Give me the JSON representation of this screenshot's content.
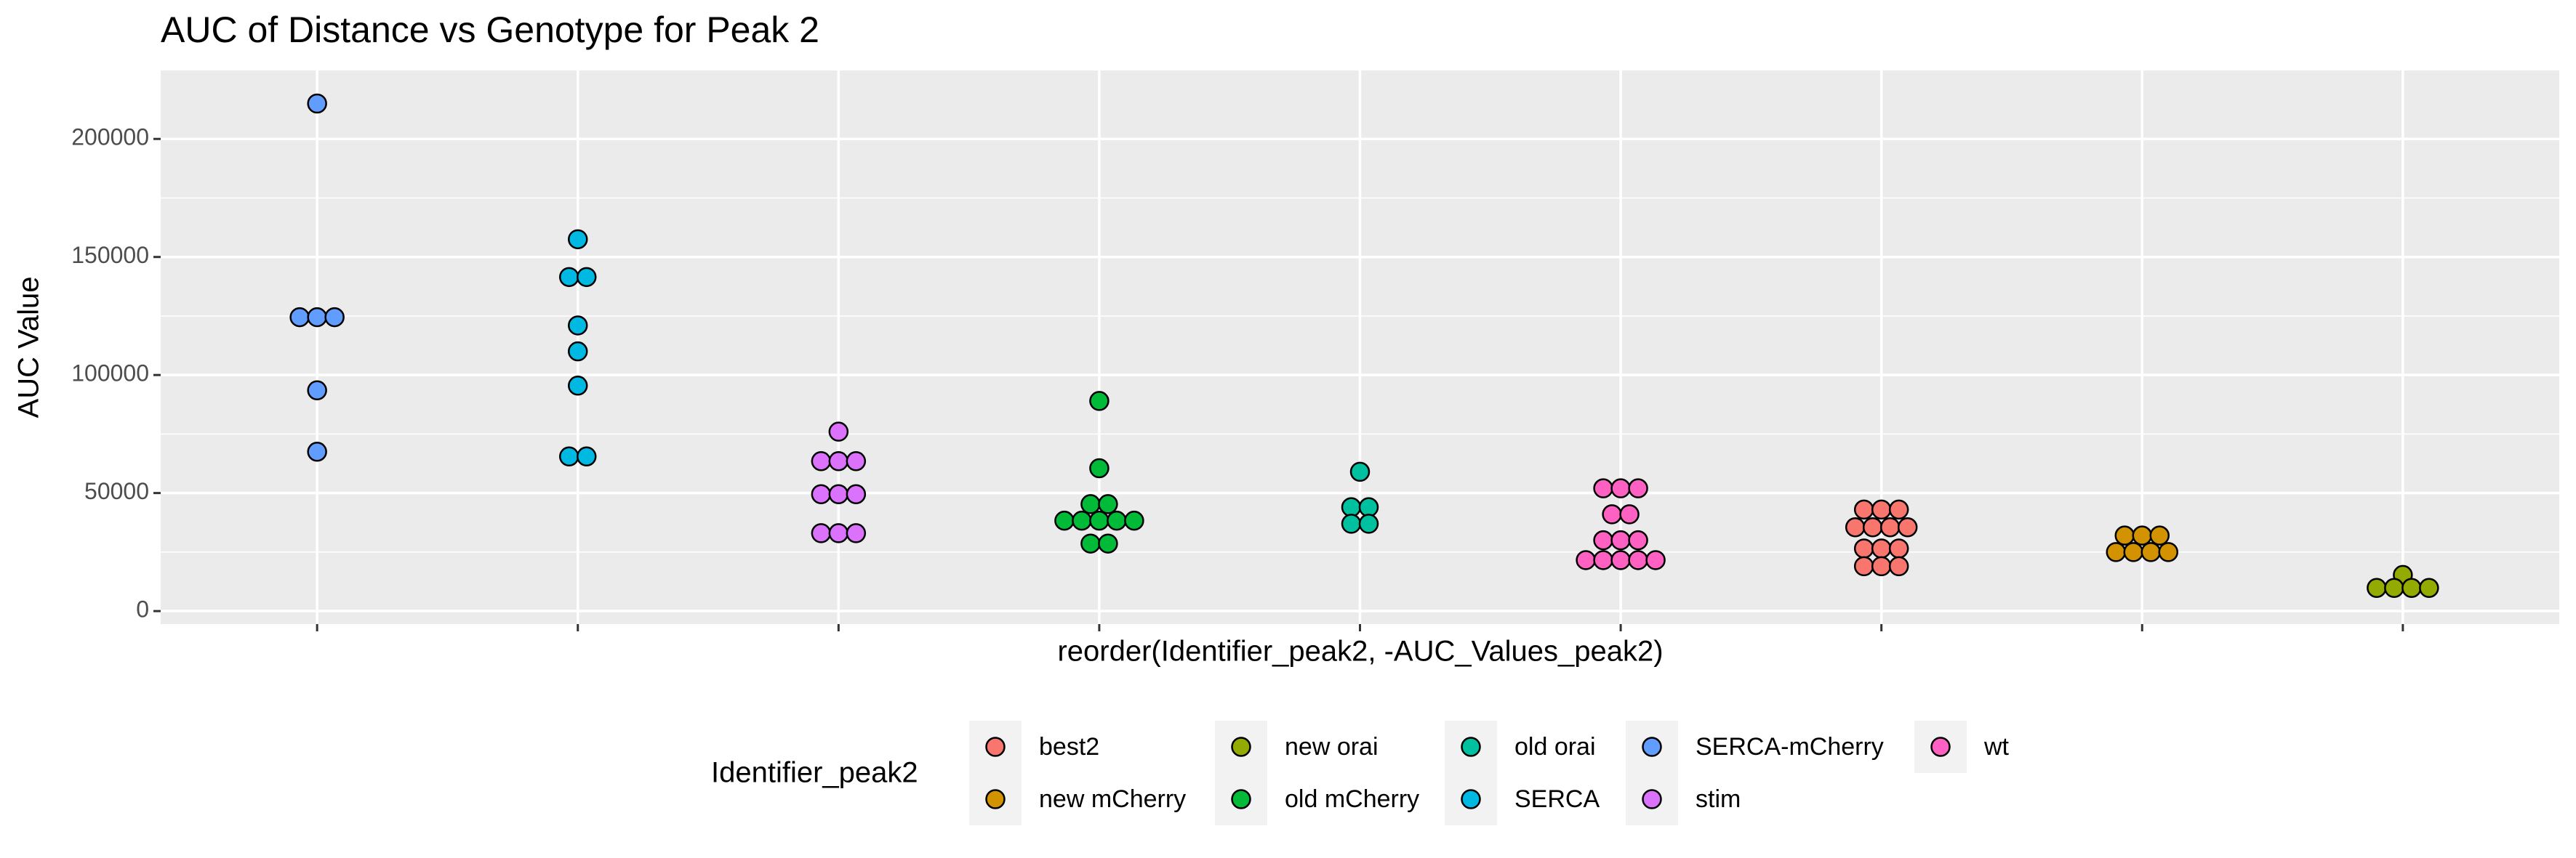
{
  "chart_data": {
    "type": "dotplot",
    "title": "AUC of Distance vs Genotype for Peak 2",
    "xlabel": "reorder(Identifier_peak2, -AUC_Values_peak2)",
    "ylabel": "AUC Value",
    "legend_title": "Identifier_peak2",
    "ylim": [
      -5500,
      229000
    ],
    "yticks": [
      0,
      50000,
      100000,
      150000,
      200000
    ],
    "grid": true,
    "legend": "bottom",
    "series": [
      {
        "name": "best2",
        "color": "#F8766D",
        "values": [
          43000,
          43000,
          43000,
          35500,
          35500,
          35500,
          35500,
          26500,
          26500,
          26500,
          19000,
          19000,
          19000
        ]
      },
      {
        "name": "new mCherry",
        "color": "#D39200",
        "values": [
          32000,
          32000,
          32000,
          25000,
          25000,
          25000,
          25000
        ]
      },
      {
        "name": "new orai",
        "color": "#93AA00",
        "values": [
          15300,
          9800,
          9800,
          9800,
          9800
        ]
      },
      {
        "name": "old mCherry",
        "color": "#00BA38",
        "values": [
          89000,
          60500,
          45300,
          45300,
          38300,
          38300,
          38300,
          38300,
          38300,
          28600,
          28600
        ]
      },
      {
        "name": "old orai",
        "color": "#00C19F",
        "values": [
          59000,
          44000,
          44000,
          37000,
          37000
        ]
      },
      {
        "name": "SERCA",
        "color": "#00B9E3",
        "values": [
          157500,
          141500,
          141500,
          121000,
          110000,
          95500,
          65500,
          65500
        ]
      },
      {
        "name": "SERCA-mCherry",
        "color": "#619CFF",
        "values": [
          215000,
          124500,
          124500,
          124500,
          93500,
          67500
        ]
      },
      {
        "name": "stim",
        "color": "#DB72FB",
        "values": [
          76000,
          63500,
          63500,
          63500,
          49500,
          49500,
          49500,
          33000,
          33000,
          33000
        ]
      },
      {
        "name": "wt",
        "color": "#FF61C3",
        "values": [
          52000,
          52000,
          52000,
          41000,
          41000,
          30000,
          30000,
          30000,
          21600,
          21600,
          21600,
          21600,
          21600
        ]
      }
    ]
  }
}
